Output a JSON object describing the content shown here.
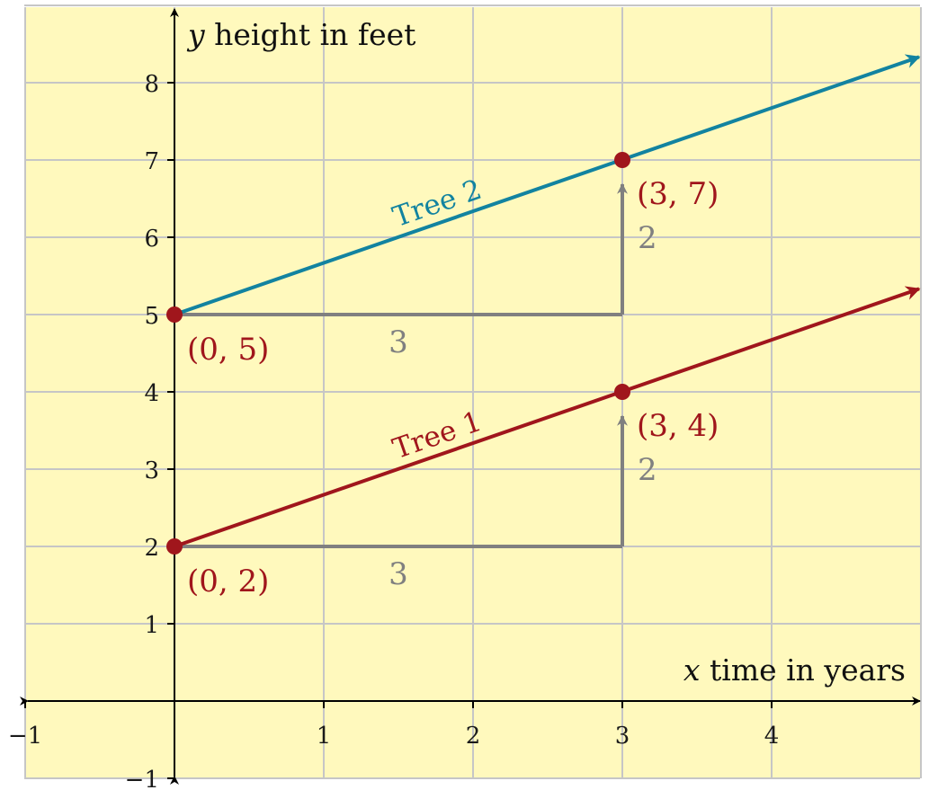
{
  "chart_data": {
    "type": "line",
    "xlabel_var": "x",
    "xlabel": "time in years",
    "ylabel_var": "y",
    "ylabel": "height in feet",
    "xlim": [
      -1,
      5
    ],
    "ylim": [
      -1,
      9
    ],
    "grid": true,
    "x_ticks": [
      {
        "value": -1,
        "label": "−1"
      },
      {
        "value": 1,
        "label": "1"
      },
      {
        "value": 2,
        "label": "2"
      },
      {
        "value": 3,
        "label": "3"
      },
      {
        "value": 4,
        "label": "4"
      }
    ],
    "y_ticks": [
      {
        "value": -1,
        "label": "−1"
      },
      {
        "value": 1,
        "label": "1"
      },
      {
        "value": 2,
        "label": "2"
      },
      {
        "value": 3,
        "label": "3"
      },
      {
        "value": 4,
        "label": "4"
      },
      {
        "value": 5,
        "label": "5"
      },
      {
        "value": 6,
        "label": "6"
      },
      {
        "value": 7,
        "label": "7"
      },
      {
        "value": 8,
        "label": "8"
      }
    ],
    "series": [
      {
        "name": "Tree 1",
        "color": "#a0161c",
        "slope": 0.6667,
        "intercept": 2,
        "line": {
          "x": [
            0,
            5
          ],
          "y": [
            2,
            5.333
          ]
        },
        "points": [
          {
            "x": 0,
            "y": 2,
            "label": "(0, 2)"
          },
          {
            "x": 3,
            "y": 4,
            "label": "(3, 4)"
          }
        ],
        "run": {
          "value": 3,
          "label": "3"
        },
        "rise": {
          "value": 2,
          "label": "2"
        }
      },
      {
        "name": "Tree 2",
        "color": "#1283a0",
        "slope": 0.6667,
        "intercept": 5,
        "line": {
          "x": [
            0,
            5
          ],
          "y": [
            5,
            8.333
          ]
        },
        "points": [
          {
            "x": 0,
            "y": 5,
            "label": "(0, 5)"
          },
          {
            "x": 3,
            "y": 7,
            "label": "(3, 7)"
          }
        ],
        "run": {
          "value": 3,
          "label": "3"
        },
        "rise": {
          "value": 2,
          "label": "2"
        }
      }
    ],
    "colors": {
      "background": "#fff9bd",
      "grid": "#c6c6c6",
      "axis": "#000000",
      "point": "#a0161c",
      "point_label": "#a0161c",
      "rise_run": "#808080"
    }
  }
}
